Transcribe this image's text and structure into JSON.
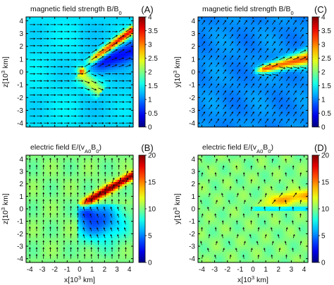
{
  "figure": {
    "panels": [
      {
        "id": "A",
        "title": "magnetic field strength B/B",
        "title_sub": "0",
        "letter": "(A)",
        "ylabel": "z[10",
        "ylabel_sup": "3",
        "ylabel_tail": " km]",
        "xlabel": "",
        "show_xticks": false,
        "colorbar": {
          "ticks": [
            "4",
            "3.5",
            "3",
            "2.5",
            "2",
            "1.5",
            "1",
            "0.5",
            "0"
          ]
        },
        "kind": "B-xz"
      },
      {
        "id": "C",
        "title": "magnetic field strength B/B",
        "title_sub": "0",
        "letter": "(C)",
        "ylabel": "y[10",
        "ylabel_sup": "3",
        "ylabel_tail": " km]",
        "xlabel": "",
        "show_xticks": false,
        "colorbar": {
          "ticks": [
            "4",
            "3.5",
            "3",
            "2.5",
            "2",
            "1.5",
            "1",
            "0.5",
            "0"
          ]
        },
        "kind": "B-xy"
      },
      {
        "id": "B",
        "title": "electric field E/(v",
        "title_mid": "A0",
        "title_tail": "B",
        "title_sub": "0",
        "title_close": ")",
        "letter": "(B)",
        "ylabel": "z[10",
        "ylabel_sup": "3",
        "ylabel_tail": " km]",
        "xlabel": "x[10",
        "xlabel_sup": "3",
        "xlabel_tail": " km]",
        "show_xticks": true,
        "colorbar": {
          "ticks": [
            "20",
            "15",
            "10",
            "5",
            "0"
          ]
        },
        "kind": "E-xz"
      },
      {
        "id": "D",
        "title": "electric field E/(v",
        "title_mid": "A0",
        "title_tail": "B",
        "title_sub": "0",
        "title_close": ")",
        "letter": "(D)",
        "ylabel": "y[10",
        "ylabel_sup": "3",
        "ylabel_tail": " km]",
        "xlabel": "x[10",
        "xlabel_sup": "3",
        "xlabel_tail": " km]",
        "show_xticks": true,
        "colorbar": {
          "ticks": [
            "20",
            "15",
            "10",
            "5",
            "0"
          ]
        },
        "kind": "E-xy"
      }
    ]
  },
  "chart_data": [
    {
      "type": "heatmap",
      "panel": "A",
      "title": "magnetic field strength B/B0",
      "xlabel": "",
      "ylabel": "z[10^3 km]",
      "xlim": [
        -4.3,
        4.3
      ],
      "ylim": [
        -4.3,
        4.3
      ],
      "yticks": [
        4,
        3,
        2,
        1,
        0,
        -1,
        -2,
        -3,
        -4
      ],
      "colorbar_range": [
        0,
        4
      ],
      "colorbar_ticks": [
        0,
        0.5,
        1,
        1.5,
        2,
        2.5,
        3,
        3.5,
        4
      ],
      "colormap": "jet",
      "background_value": 1.3,
      "features": [
        {
          "type": "ridge",
          "from": [
            0.5,
            0.4
          ],
          "to": [
            3.6,
            3.0
          ],
          "peak": 3.5
        },
        {
          "type": "depletion_wedge",
          "from": [
            0.3,
            0.0
          ],
          "to": [
            3.5,
            2.0
          ],
          "min": 0.5
        },
        {
          "type": "enhanced_tail",
          "from": [
            0.3,
            0.0
          ],
          "to": [
            1.6,
            -1.4
          ],
          "peak": 2.0
        }
      ],
      "vectors": "field arrows pointing +x (sheared near obstacle)"
    },
    {
      "type": "heatmap",
      "panel": "C",
      "title": "magnetic field strength B/B0",
      "xlabel": "",
      "ylabel": "y[10^3 km]",
      "xlim": [
        -4.3,
        4.3
      ],
      "ylim": [
        -4.3,
        4.3
      ],
      "yticks": [
        4,
        3,
        2,
        1,
        0,
        -1,
        -2,
        -3,
        -4
      ],
      "colorbar_range": [
        0,
        4
      ],
      "colorbar_ticks": [
        0,
        0.5,
        1,
        1.5,
        2,
        2.5,
        3,
        3.5,
        4
      ],
      "colormap": "jet",
      "background_value": 1.0,
      "features": [
        {
          "type": "wake",
          "from": [
            0.0,
            0.0
          ],
          "to": [
            4.3,
            1.3
          ],
          "peak": 3.2
        }
      ],
      "vectors": "field arrows pointing up-right"
    },
    {
      "type": "heatmap",
      "panel": "B",
      "title": "electric field E/(vA0B0)",
      "xlabel": "x[10^3 km]",
      "ylabel": "z[10^3 km]",
      "xlim": [
        -4.3,
        4.3
      ],
      "ylim": [
        -4.3,
        4.3
      ],
      "xticks": [
        -4,
        -3,
        -2,
        -1,
        0,
        1,
        2,
        3,
        4
      ],
      "yticks": [
        4,
        3,
        2,
        1,
        0,
        -1,
        -2,
        -3,
        -4
      ],
      "colorbar_range": [
        0,
        20
      ],
      "colorbar_ticks": [
        0,
        5,
        10,
        15,
        20
      ],
      "colormap": "jet",
      "background_value": 10,
      "features": [
        {
          "type": "ridge",
          "from": [
            0.0,
            0.3
          ],
          "to": [
            4.3,
            2.7
          ],
          "peak": 20
        },
        {
          "type": "depleted_region",
          "from": [
            0.0,
            0.0
          ],
          "to": [
            3.5,
            -2.5
          ],
          "min": 3
        }
      ],
      "vectors": "vertical arrows"
    },
    {
      "type": "heatmap",
      "panel": "D",
      "title": "electric field E/(vA0B0)",
      "xlabel": "x[10^3 km]",
      "ylabel": "y[10^3 km]",
      "xlim": [
        -4.3,
        4.3
      ],
      "ylim": [
        -4.3,
        4.3
      ],
      "xticks": [
        -4,
        -3,
        -2,
        -1,
        0,
        1,
        2,
        3,
        4
      ],
      "yticks": [
        4,
        3,
        2,
        1,
        0,
        -1,
        -2,
        -3,
        -4
      ],
      "colorbar_range": [
        0,
        20
      ],
      "colorbar_ticks": [
        0,
        5,
        10,
        15,
        20
      ],
      "colormap": "jet",
      "background_value": 10,
      "features": [
        {
          "type": "enhanced_band",
          "from": [
            0.5,
            0.3
          ],
          "to": [
            4.3,
            1.1
          ],
          "peak": 14
        },
        {
          "type": "depleted_strip",
          "from": [
            0.0,
            0.0
          ],
          "to": [
            4.3,
            0.0
          ],
          "min": 4
        }
      ],
      "vectors": "sparse arrows"
    }
  ]
}
